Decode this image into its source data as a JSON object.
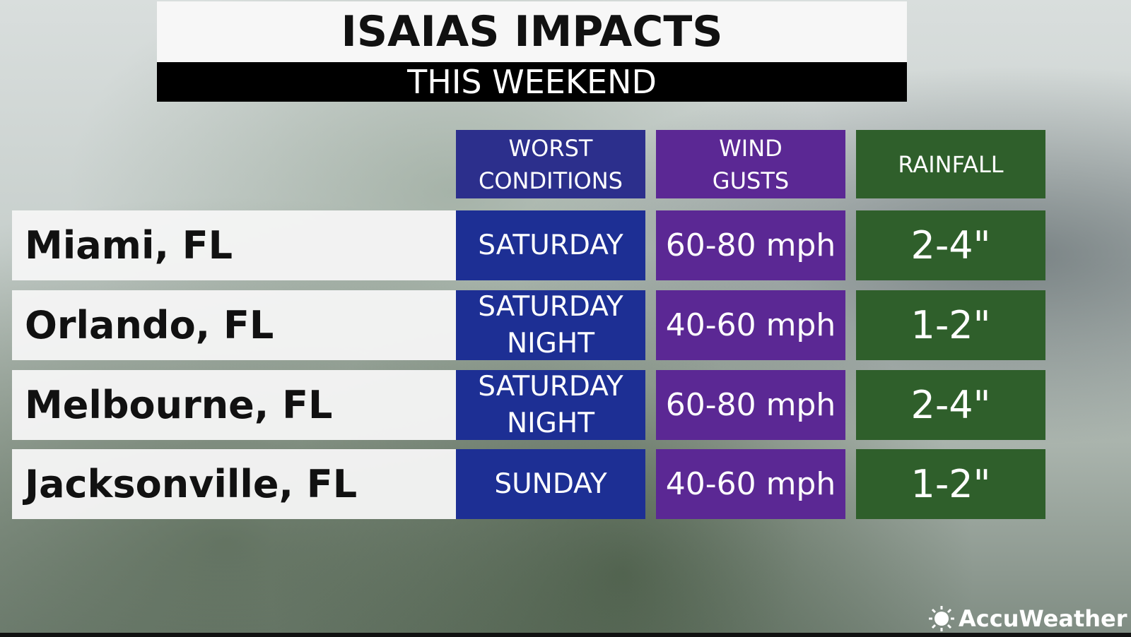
{
  "header": {
    "title": "ISAIAS IMPACTS",
    "subtitle": "THIS WEEKEND"
  },
  "table": {
    "columns": [
      "WORST\nCONDITIONS",
      "WIND\nGUSTS",
      "RAINFALL"
    ],
    "rows": [
      [
        "Miami, FL",
        "SATURDAY",
        "60-80 mph",
        "2-4\""
      ],
      [
        "Orlando, FL",
        "SATURDAY\nNIGHT",
        "40-60 mph",
        "1-2\""
      ],
      [
        "Melbourne, FL",
        "SATURDAY\nNIGHT",
        "60-80 mph",
        "2-4\""
      ],
      [
        "Jacksonville, FL",
        "SUNDAY",
        "40-60 mph",
        "1-2\""
      ]
    ]
  },
  "branding": "AccuWeather"
}
